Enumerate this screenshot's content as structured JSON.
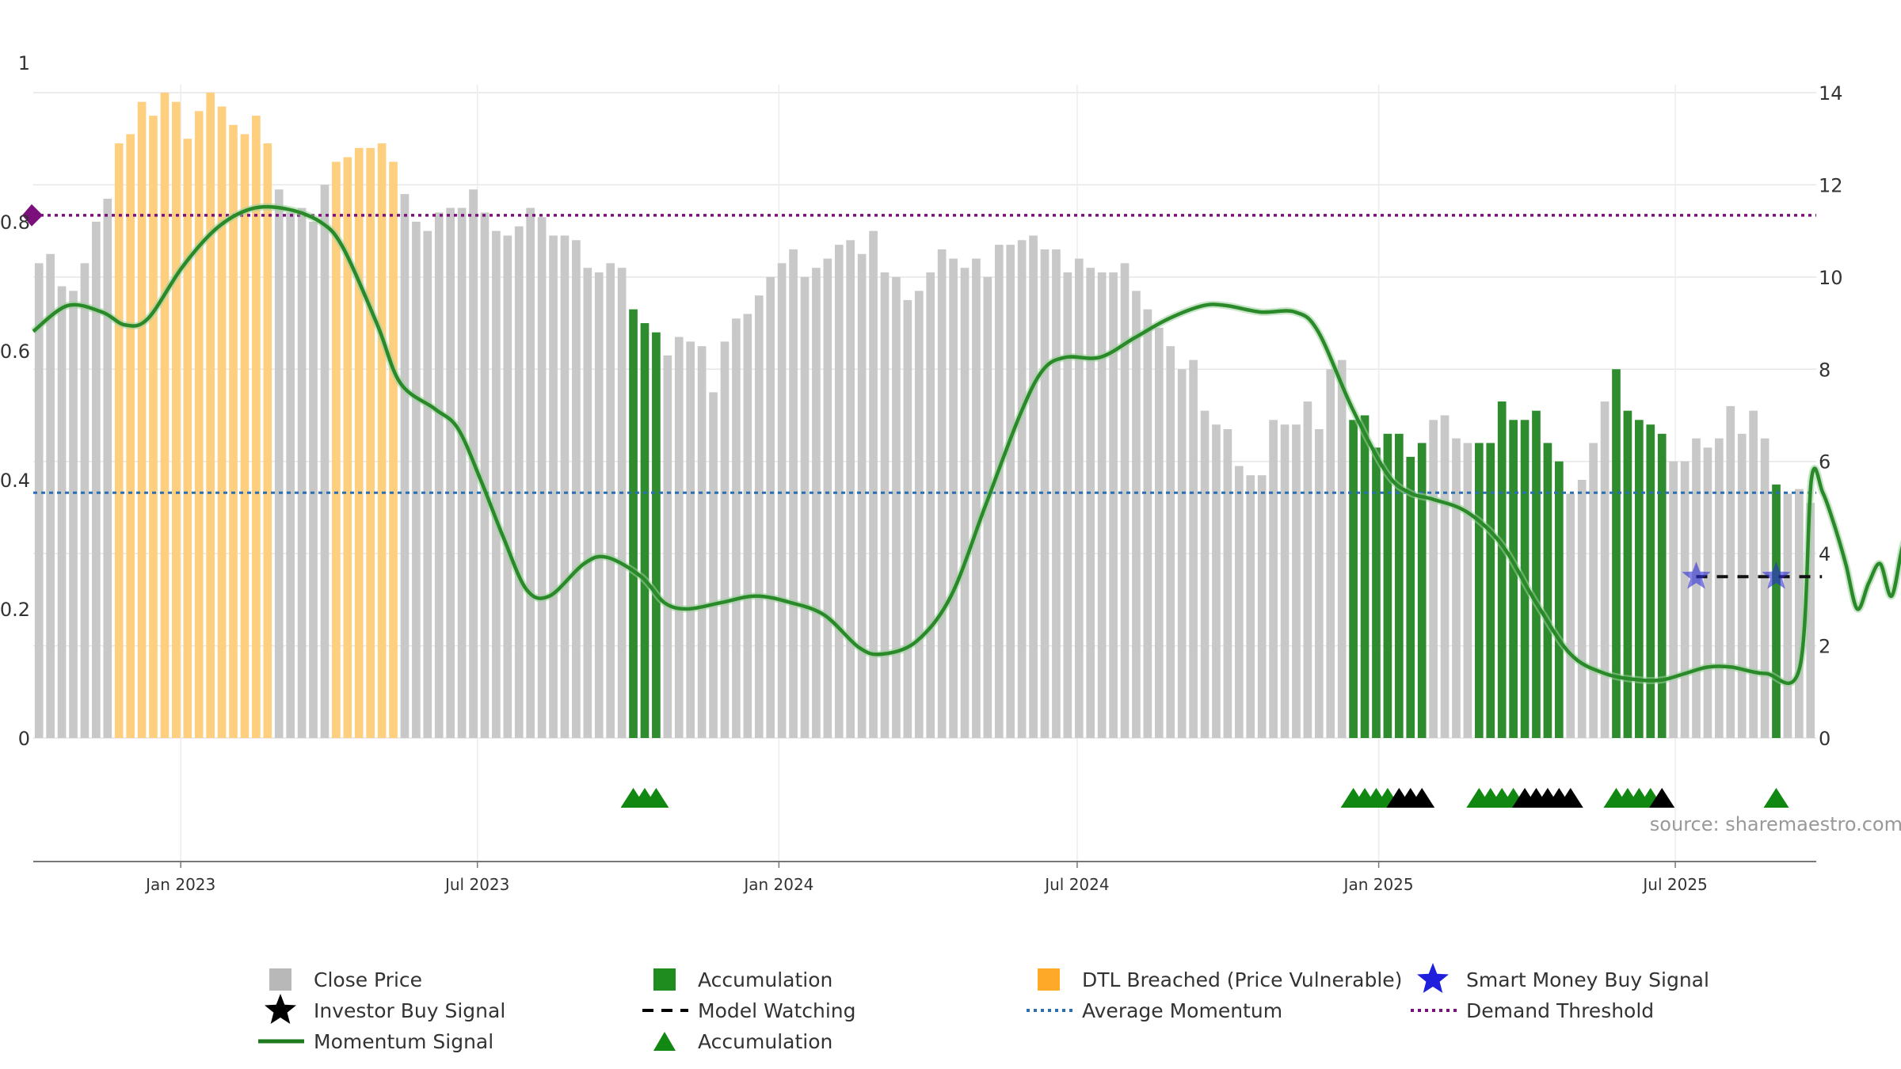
{
  "chart_data": {
    "type": "bar",
    "left_axis": {
      "range": [
        0,
        1
      ],
      "ticks": [
        {
          "v": 0,
          "label": "0"
        },
        {
          "v": 0.2,
          "label": "0.2"
        },
        {
          "v": 0.4,
          "label": "0.4"
        },
        {
          "v": 0.6,
          "label": "0.6"
        },
        {
          "v": 0.8,
          "label": "0.8"
        },
        {
          "v": 1,
          "label": "1"
        }
      ]
    },
    "right_axis": {
      "range": [
        0,
        14
      ],
      "ticks": [
        {
          "v": 0,
          "label": "0"
        },
        {
          "v": 2,
          "label": "2"
        },
        {
          "v": 4,
          "label": "4"
        },
        {
          "v": 6,
          "label": "6"
        },
        {
          "v": 8,
          "label": "8"
        },
        {
          "v": 10,
          "label": "10"
        },
        {
          "v": 12,
          "label": "12"
        },
        {
          "v": 14,
          "label": "14"
        }
      ]
    },
    "x_axis": {
      "start": "2022-10-03",
      "end": "2025-09-25",
      "ticks": [
        {
          "date": "2023-01-01",
          "label": "Jan 2023"
        },
        {
          "date": "2023-07-01",
          "label": "Jul 2023"
        },
        {
          "date": "2024-01-01",
          "label": "Jan 2024"
        },
        {
          "date": "2024-07-01",
          "label": "Jul 2024"
        },
        {
          "date": "2025-01-01",
          "label": "Jan 2025"
        },
        {
          "date": "2025-07-01",
          "label": "Jul 2025"
        }
      ]
    },
    "close_price": {
      "start_week": "2022-10-03",
      "values": [
        10.3,
        10.5,
        9.8,
        9.7,
        10.3,
        11.2,
        11.7,
        12.9,
        13.1,
        13.8,
        13.5,
        14.0,
        13.8,
        13.0,
        13.6,
        14.0,
        13.7,
        13.3,
        13.1,
        13.5,
        12.9,
        11.9,
        11.4,
        11.5,
        11.2,
        12.0,
        12.5,
        12.6,
        12.8,
        12.8,
        12.9,
        12.5,
        11.8,
        11.2,
        11.0,
        11.4,
        11.5,
        11.5,
        11.9,
        11.4,
        11.0,
        10.9,
        11.1,
        11.5,
        11.3,
        10.9,
        10.9,
        10.8,
        10.2,
        10.1,
        10.3,
        10.2,
        9.3,
        9.0,
        8.8,
        8.3,
        8.7,
        8.6,
        8.5,
        7.5,
        8.6,
        9.1,
        9.2,
        9.6,
        10.0,
        10.3,
        10.6,
        10.0,
        10.2,
        10.4,
        10.7,
        10.8,
        10.5,
        11.0,
        10.1,
        10.0,
        9.5,
        9.7,
        10.1,
        10.6,
        10.4,
        10.2,
        10.4,
        10.0,
        10.7,
        10.7,
        10.8,
        10.9,
        10.6,
        10.6,
        10.1,
        10.4,
        10.2,
        10.1,
        10.1,
        10.3,
        9.7,
        9.3,
        8.9,
        8.5,
        8.0,
        8.2,
        7.1,
        6.8,
        6.7,
        5.9,
        5.7,
        5.7,
        6.9,
        6.8,
        6.8,
        7.3,
        6.7,
        8.0,
        8.2,
        6.9,
        7.0,
        6.3,
        6.6,
        6.6,
        6.1,
        6.4,
        6.9,
        7.0,
        6.5,
        6.4,
        6.4,
        6.4,
        7.3,
        6.9,
        6.9,
        7.1,
        6.4,
        6.0,
        5.3,
        5.6,
        6.4,
        7.3,
        8.0,
        7.1,
        6.9,
        6.8,
        6.6,
        6.0,
        6.0,
        6.5,
        6.3,
        6.5,
        7.2,
        6.6,
        7.1,
        6.5,
        5.5,
        5.3,
        5.4,
        5.1
      ],
      "color": "#c8c8c8"
    },
    "accumulation_bars": {
      "color": "#2e8b2e",
      "ranges": [
        [
          52,
          54
        ],
        [
          115,
          121
        ],
        [
          126,
          133
        ],
        [
          138,
          142
        ],
        [
          152,
          152
        ]
      ]
    },
    "dtl_breached_bars": {
      "color": "#ffcf80",
      "ranges": [
        [
          7,
          20
        ],
        [
          26,
          31
        ]
      ]
    },
    "momentum_signal": {
      "color": "#2a8a2a",
      "points": [
        [
          "2022-10-03",
          0.63
        ],
        [
          "2022-10-24",
          0.67
        ],
        [
          "2022-11-14",
          0.66
        ],
        [
          "2022-11-28",
          0.64
        ],
        [
          "2022-12-12",
          0.65
        ],
        [
          "2023-01-02",
          0.73
        ],
        [
          "2023-01-23",
          0.79
        ],
        [
          "2023-02-13",
          0.82
        ],
        [
          "2023-03-06",
          0.82
        ],
        [
          "2023-03-27",
          0.8
        ],
        [
          "2023-04-10",
          0.76
        ],
        [
          "2023-05-01",
          0.64
        ],
        [
          "2023-05-15",
          0.55
        ],
        [
          "2023-06-05",
          0.51
        ],
        [
          "2023-06-19",
          0.48
        ],
        [
          "2023-07-03",
          0.4
        ],
        [
          "2023-07-17",
          0.31
        ],
        [
          "2023-07-31",
          0.23
        ],
        [
          "2023-08-14",
          0.22
        ],
        [
          "2023-09-04",
          0.27
        ],
        [
          "2023-09-18",
          0.28
        ],
        [
          "2023-10-09",
          0.25
        ],
        [
          "2023-10-23",
          0.21
        ],
        [
          "2023-11-06",
          0.2
        ],
        [
          "2023-11-27",
          0.21
        ],
        [
          "2023-12-18",
          0.22
        ],
        [
          "2024-01-08",
          0.21
        ],
        [
          "2024-01-29",
          0.19
        ],
        [
          "2024-02-19",
          0.14
        ],
        [
          "2024-03-04",
          0.13
        ],
        [
          "2024-03-25",
          0.15
        ],
        [
          "2024-04-15",
          0.22
        ],
        [
          "2024-05-06",
          0.36
        ],
        [
          "2024-05-27",
          0.5
        ],
        [
          "2024-06-10",
          0.57
        ],
        [
          "2024-06-24",
          0.59
        ],
        [
          "2024-07-15",
          0.59
        ],
        [
          "2024-08-05",
          0.62
        ],
        [
          "2024-08-26",
          0.65
        ],
        [
          "2024-09-16",
          0.67
        ],
        [
          "2024-09-30",
          0.67
        ],
        [
          "2024-10-21",
          0.66
        ],
        [
          "2024-11-11",
          0.66
        ],
        [
          "2024-11-25",
          0.63
        ],
        [
          "2024-12-16",
          0.51
        ],
        [
          "2025-01-06",
          0.41
        ],
        [
          "2025-01-20",
          0.38
        ],
        [
          "2025-02-03",
          0.37
        ],
        [
          "2025-02-24",
          0.35
        ],
        [
          "2025-03-17",
          0.3
        ],
        [
          "2025-04-07",
          0.21
        ],
        [
          "2025-04-28",
          0.13
        ],
        [
          "2025-05-19",
          0.1
        ],
        [
          "2025-06-09",
          0.09
        ],
        [
          "2025-06-23",
          0.09
        ],
        [
          "2025-07-07",
          0.1
        ],
        [
          "2025-07-21",
          0.11
        ],
        [
          "2025-08-04",
          0.11
        ],
        [
          "2025-08-25",
          0.1
        ],
        [
          "2025-09-15",
          0.11
        ]
      ],
      "tail": [
        0.4,
        0.38,
        0.33,
        0.27,
        0.2,
        0.24,
        0.27,
        0.22,
        0.3,
        0.33,
        0.28,
        0.22,
        0.21,
        0.29,
        0.32
      ]
    },
    "average_momentum": {
      "value": 0.38,
      "color": "#2a6fb0"
    },
    "demand_threshold": {
      "value": 0.81,
      "color": "#7b0f7b"
    },
    "smart_money_buy_signal": {
      "color": "#2d2dd6",
      "week_indices": [
        145,
        152
      ]
    },
    "model_watching": {
      "color": "#111111",
      "value": 0.25,
      "week_range": [
        145,
        156
      ]
    },
    "accumulation_markers": {
      "color": "#118811",
      "week_indices": [
        52,
        53,
        54,
        115,
        116,
        117,
        118,
        126,
        127,
        128,
        129,
        138,
        139,
        140,
        141,
        152
      ]
    },
    "investor_buy_markers": {
      "color": "#000000",
      "week_indices": [
        119,
        120,
        121,
        130,
        131,
        132,
        133,
        134,
        142
      ]
    },
    "legend": [
      {
        "label": "Close Price",
        "kind": "square",
        "color": "#b8b8b8"
      },
      {
        "label": "Accumulation",
        "kind": "square",
        "color": "#1f8c1f"
      },
      {
        "label": "DTL Breached (Price Vulnerable)",
        "kind": "square",
        "color": "#ffa928"
      },
      {
        "label": "Smart Money Buy Signal",
        "kind": "star",
        "color": "#1f1fdc"
      },
      {
        "label": "Investor Buy Signal",
        "kind": "star",
        "color": "#000000"
      },
      {
        "label": "Model Watching",
        "kind": "dash",
        "color": "#000000"
      },
      {
        "label": "Average Momentum",
        "kind": "dot",
        "color": "#2a6fb0"
      },
      {
        "label": "Demand Threshold",
        "kind": "dot",
        "color": "#7b0f7b"
      },
      {
        "label": "Momentum Signal",
        "kind": "line",
        "color": "#1f7a1f"
      },
      {
        "label": "Accumulation",
        "kind": "triangle",
        "color": "#118811"
      }
    ]
  },
  "source": "source: sharemaestro.com"
}
